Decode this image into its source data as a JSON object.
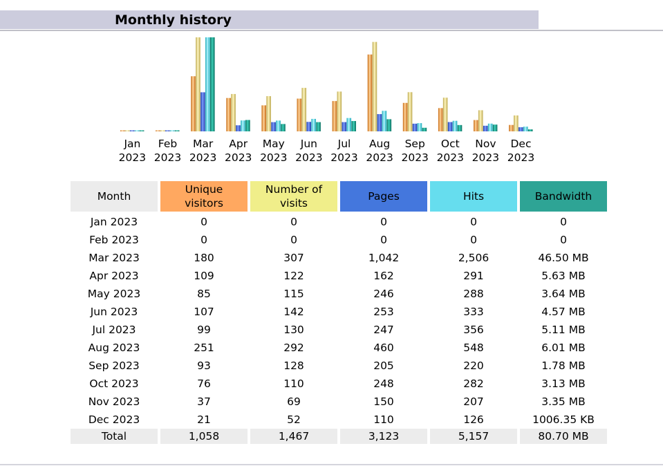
{
  "section": {
    "title": "Monthly history"
  },
  "colors": {
    "unique": "#f39c34",
    "visits": "#e8dc84",
    "pages": "#3a5fd8",
    "hits": "#3fd9e6",
    "bandwidth": "#16917f",
    "header_month": "#ececec",
    "header_unique": "#ffa860",
    "header_visits": "#f0ee8a",
    "header_pages": "#4477dd",
    "header_hits": "#66ddee",
    "header_bandwidth": "#2ea495"
  },
  "table": {
    "headers": {
      "month": "Month",
      "unique_l1": "Unique",
      "unique_l2": "visitors",
      "visits_l1": "Number of",
      "visits_l2": "visits",
      "pages": "Pages",
      "hits": "Hits",
      "bandwidth": "Bandwidth"
    },
    "rows": [
      {
        "month": "Jan 2023",
        "unique": "0",
        "visits": "0",
        "pages": "0",
        "hits": "0",
        "bandwidth": "0"
      },
      {
        "month": "Feb 2023",
        "unique": "0",
        "visits": "0",
        "pages": "0",
        "hits": "0",
        "bandwidth": "0"
      },
      {
        "month": "Mar 2023",
        "unique": "180",
        "visits": "307",
        "pages": "1,042",
        "hits": "2,506",
        "bandwidth": "46.50 MB"
      },
      {
        "month": "Apr 2023",
        "unique": "109",
        "visits": "122",
        "pages": "162",
        "hits": "291",
        "bandwidth": "5.63 MB"
      },
      {
        "month": "May 2023",
        "unique": "85",
        "visits": "115",
        "pages": "246",
        "hits": "288",
        "bandwidth": "3.64 MB"
      },
      {
        "month": "Jun 2023",
        "unique": "107",
        "visits": "142",
        "pages": "253",
        "hits": "333",
        "bandwidth": "4.57 MB"
      },
      {
        "month": "Jul 2023",
        "unique": "99",
        "visits": "130",
        "pages": "247",
        "hits": "356",
        "bandwidth": "5.11 MB"
      },
      {
        "month": "Aug 2023",
        "unique": "251",
        "visits": "292",
        "pages": "460",
        "hits": "548",
        "bandwidth": "6.01 MB"
      },
      {
        "month": "Sep 2023",
        "unique": "93",
        "visits": "128",
        "pages": "205",
        "hits": "220",
        "bandwidth": "1.78 MB"
      },
      {
        "month": "Oct 2023",
        "unique": "76",
        "visits": "110",
        "pages": "248",
        "hits": "282",
        "bandwidth": "3.13 MB"
      },
      {
        "month": "Nov 2023",
        "unique": "37",
        "visits": "69",
        "pages": "150",
        "hits": "207",
        "bandwidth": "3.35 MB"
      },
      {
        "month": "Dec 2023",
        "unique": "21",
        "visits": "52",
        "pages": "110",
        "hits": "126",
        "bandwidth": "1006.35 KB"
      }
    ],
    "total": {
      "label": "Total",
      "unique": "1,058",
      "visits": "1,467",
      "pages": "3,123",
      "hits": "5,157",
      "bandwidth": "80.70 MB"
    }
  },
  "chart_data": {
    "type": "bar",
    "categories": [
      "Jan",
      "Feb",
      "Mar",
      "Apr",
      "May",
      "Jun",
      "Jul",
      "Aug",
      "Sep",
      "Oct",
      "Nov",
      "Dec"
    ],
    "category_sublabels": [
      "2023",
      "2023",
      "2023",
      "2023",
      "2023",
      "2023",
      "2023",
      "2023",
      "2023",
      "2023",
      "2023",
      "2023"
    ],
    "series": [
      {
        "name": "Unique visitors",
        "color": "#f39c34",
        "values": [
          0,
          0,
          180,
          109,
          85,
          107,
          99,
          251,
          93,
          76,
          37,
          21
        ]
      },
      {
        "name": "Number of visits",
        "color": "#e8dc84",
        "values": [
          0,
          0,
          307,
          122,
          115,
          142,
          130,
          292,
          128,
          110,
          69,
          52
        ]
      },
      {
        "name": "Pages",
        "color": "#3a5fd8",
        "values": [
          0,
          0,
          1042,
          162,
          246,
          253,
          247,
          460,
          205,
          248,
          150,
          110
        ]
      },
      {
        "name": "Hits",
        "color": "#3fd9e6",
        "values": [
          0,
          0,
          2506,
          291,
          288,
          333,
          356,
          548,
          220,
          282,
          207,
          126
        ]
      },
      {
        "name": "Bandwidth (MB)",
        "color": "#16917f",
        "values": [
          0,
          0,
          46.5,
          5.63,
          3.64,
          4.57,
          5.11,
          6.01,
          1.78,
          3.13,
          3.35,
          0.98
        ]
      }
    ],
    "scale_groups": {
      "visitors_visits": [
        "Unique visitors",
        "Number of visits"
      ],
      "pages_hits": [
        "Pages",
        "Hits"
      ],
      "bandwidth": [
        "Bandwidth (MB)"
      ]
    },
    "axes": {
      "y_axis_shown": false,
      "grid": false
    },
    "legend": "none"
  }
}
